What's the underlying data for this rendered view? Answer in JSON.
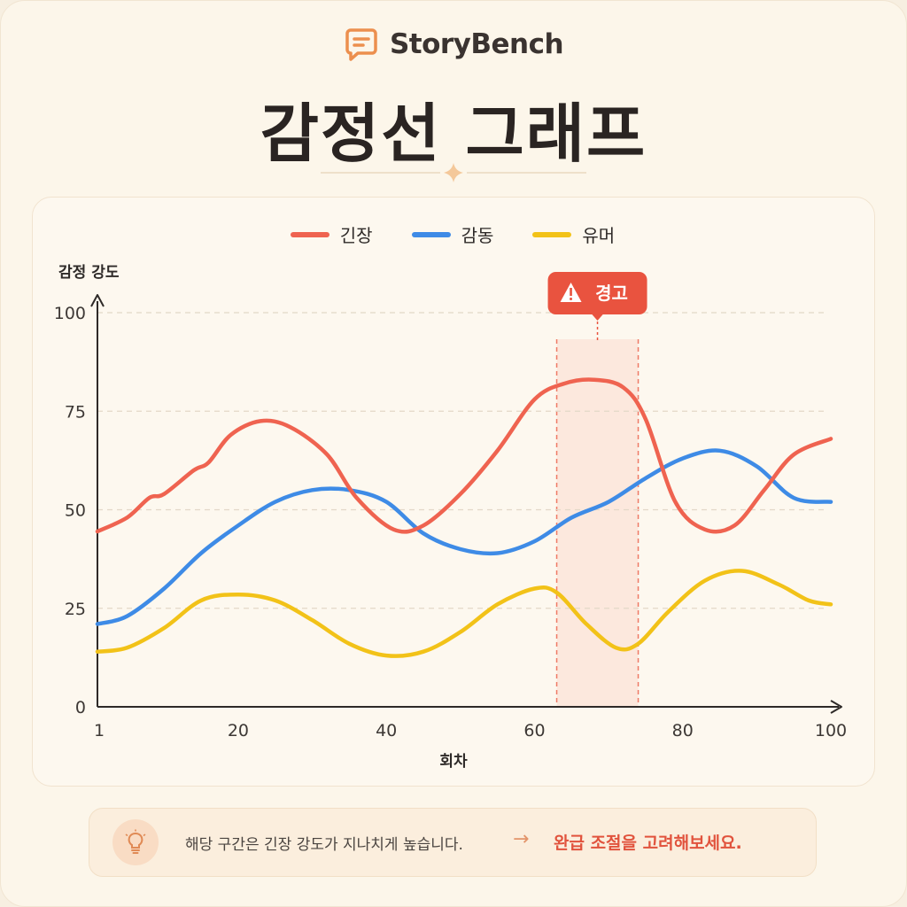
{
  "brand": {
    "name": "StoryBench",
    "icon": "chat-bubble-icon",
    "accent": "#ec8f4e"
  },
  "title": "감정선 그래프",
  "colors": {
    "tension": "#ef6350",
    "emotion": "#3e8be6",
    "humor": "#f2c218",
    "warning": "#e9533f",
    "highlight": "#fbe3d7"
  },
  "warning": {
    "label": "경고",
    "icon": "warning-triangle-icon"
  },
  "tip": {
    "icon": "lightbulb-icon",
    "message": "해당 구간은 긴장 강도가 지나치게 높습니다.",
    "arrow": "→",
    "action": "완급 조절을 고려해보세요."
  },
  "chart_data": {
    "type": "line",
    "ylabel": "감정 강도",
    "xlabel": "회차",
    "ylim": [
      0,
      100
    ],
    "xlim": [
      1,
      100
    ],
    "yticks": [
      0,
      25,
      50,
      75,
      100
    ],
    "xticks": [
      1,
      20,
      40,
      60,
      80,
      100
    ],
    "grid": "horizontal-dashed",
    "legend_position": "top-center",
    "highlight_range": [
      63,
      74
    ],
    "series": [
      {
        "name": "긴장",
        "x": [
          1,
          5,
          8,
          10,
          14,
          16,
          19,
          23,
          27,
          32,
          36,
          41,
          45,
          50,
          55,
          60,
          64,
          68,
          72,
          75,
          79,
          83,
          87,
          91,
          95,
          100
        ],
        "values": [
          44.5,
          48,
          53,
          54,
          60,
          62,
          69,
          72.5,
          71,
          64,
          53,
          45,
          46,
          54,
          65,
          78,
          82,
          83,
          81,
          73,
          52,
          45,
          46,
          55,
          64,
          68
        ]
      },
      {
        "name": "감동",
        "x": [
          1,
          5,
          10,
          15,
          20,
          25,
          30,
          35,
          40,
          45,
          50,
          55,
          60,
          65,
          70,
          75,
          80,
          85,
          90,
          95,
          100
        ],
        "values": [
          21,
          23,
          30,
          39,
          46,
          52,
          55,
          55,
          52,
          44,
          40,
          39,
          42,
          48,
          52,
          58,
          63,
          65,
          61,
          53,
          52
        ]
      },
      {
        "name": "유머",
        "x": [
          1,
          5,
          10,
          15,
          20,
          25,
          30,
          35,
          40,
          45,
          50,
          55,
          60,
          63,
          67,
          71,
          74,
          78,
          83,
          88,
          93,
          97,
          100
        ],
        "values": [
          14,
          15,
          20,
          27,
          28.5,
          27,
          22,
          16,
          13,
          14,
          19,
          26,
          30,
          29,
          21,
          15,
          16,
          24,
          32,
          34.5,
          31,
          27,
          26
        ]
      }
    ]
  }
}
